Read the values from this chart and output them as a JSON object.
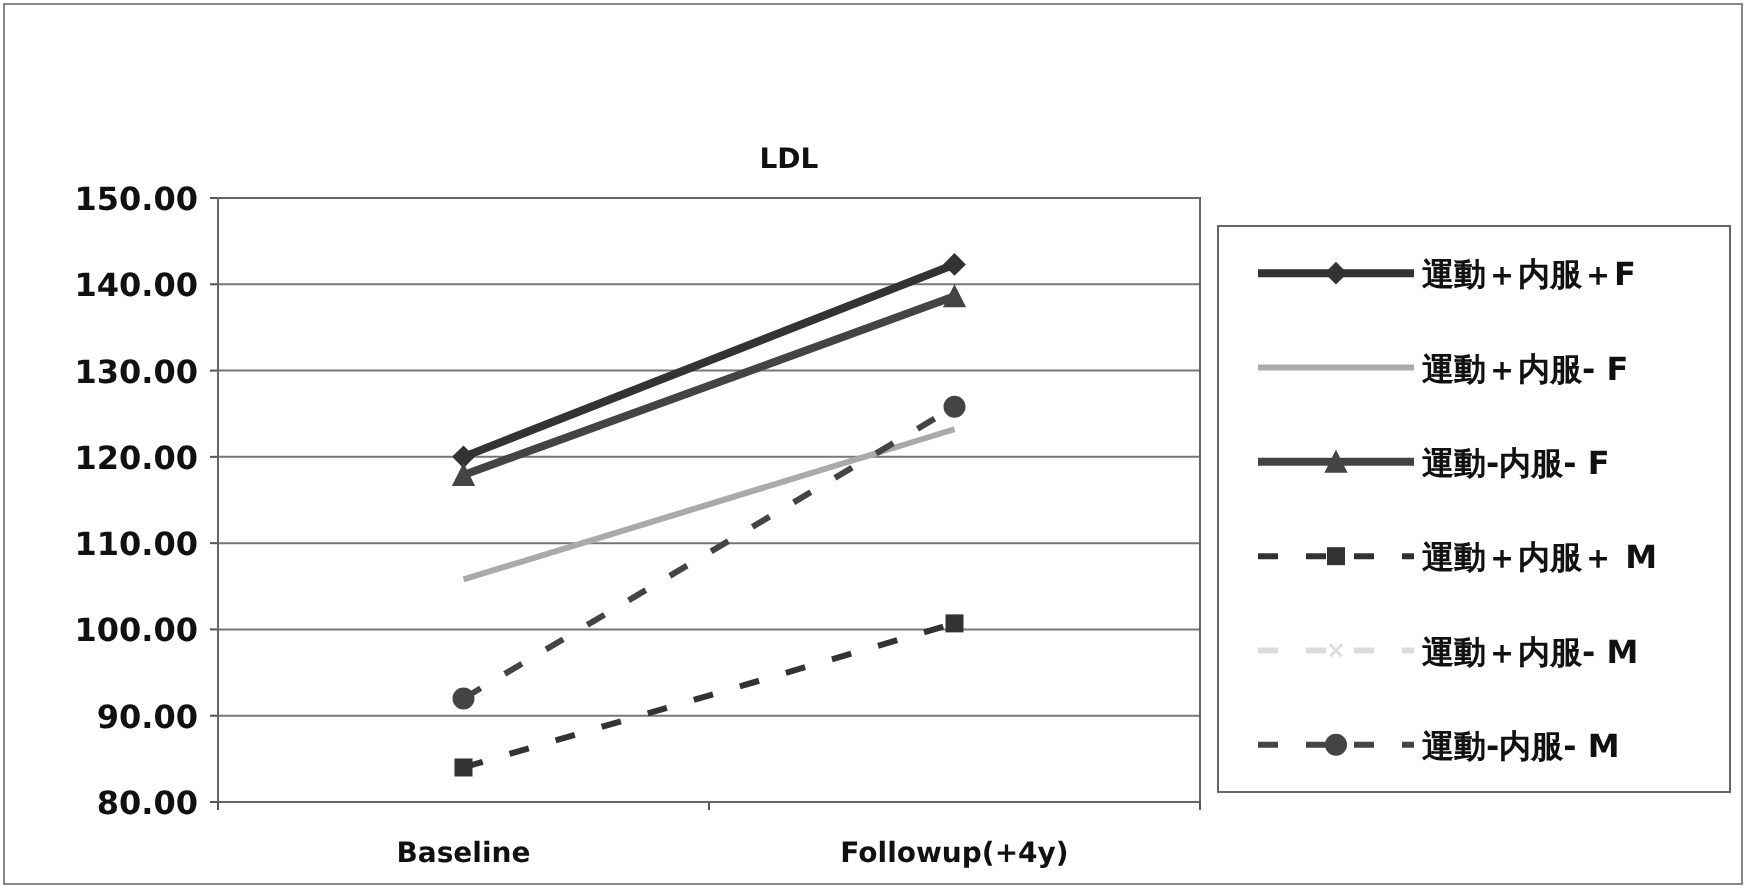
{
  "chart_data": {
    "type": "line",
    "title": "LDL",
    "categories": [
      "Baseline",
      "Followup(+4y)"
    ],
    "series": [
      {
        "name": "運動＋内服＋F",
        "color": "#333333",
        "values": [
          120.0,
          142.3
        ],
        "marker": "diamond",
        "line_style": "solid"
      },
      {
        "name": "運動＋内服- F",
        "color": "#aaaaaa",
        "values": [
          105.8,
          123.2
        ],
        "marker": "none",
        "line_style": "solid"
      },
      {
        "name": "運動-内服- F",
        "color": "#444444",
        "values": [
          117.9,
          138.6
        ],
        "marker": "triangle",
        "line_style": "solid"
      },
      {
        "name": "運動＋内服＋ M",
        "color": "#333333",
        "values": [
          84.0,
          100.7
        ],
        "marker": "square",
        "line_style": "dashed"
      },
      {
        "name": "運動＋内服- M",
        "color": "#dddddd",
        "values": [
          null,
          null
        ],
        "marker": "cross",
        "line_style": "dashed"
      },
      {
        "name": "運動-内服- M",
        "color": "#444444",
        "values": [
          92.0,
          125.8
        ],
        "marker": "circle",
        "line_style": "dashed"
      }
    ],
    "ylim": [
      80,
      150
    ],
    "yticks": [
      {
        "value": 80,
        "label": "80.00"
      },
      {
        "value": 90,
        "label": "90.00"
      },
      {
        "value": 100,
        "label": "100.00"
      },
      {
        "value": 110,
        "label": "110.00"
      },
      {
        "value": 120,
        "label": "120.00"
      },
      {
        "value": 130,
        "label": "130.00"
      },
      {
        "value": 140,
        "label": "140.00"
      },
      {
        "value": 150,
        "label": "150.00"
      }
    ],
    "grid": "y",
    "legend": "right"
  }
}
